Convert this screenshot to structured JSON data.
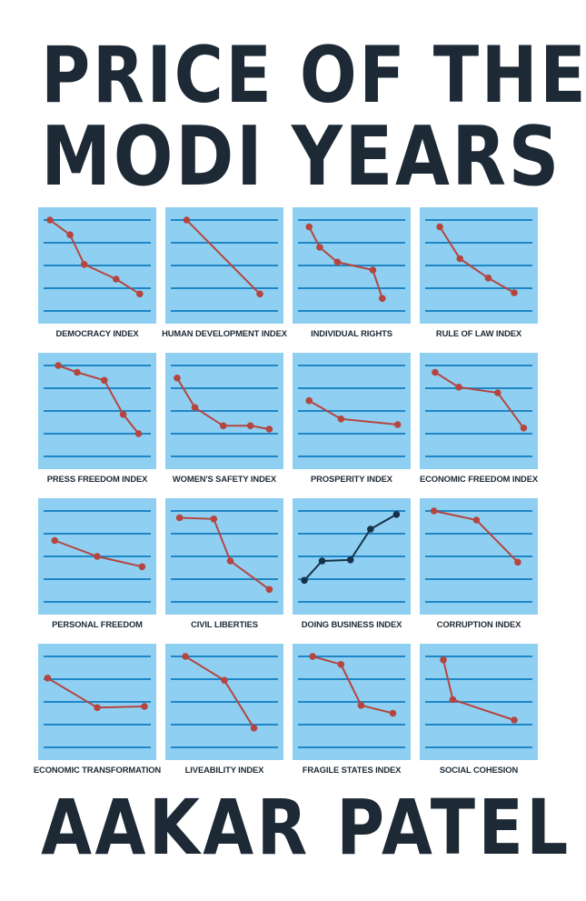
{
  "cover": {
    "title_line1": "PRICE OF THE",
    "title_line2": "MODI YEARS",
    "author": "AAKAR PATEL"
  },
  "colors": {
    "background": "#ffffff",
    "title": "#1d2a36",
    "panel": "#8fd0f2",
    "gridline": "#1f86c6",
    "declining_line": "#b5453f",
    "rising_line": "#16314a"
  },
  "chart_data": [
    {
      "type": "line",
      "label": "DEMOCRACY INDEX",
      "trend": "down",
      "ylim": [
        0,
        4
      ],
      "x": [
        0.1,
        0.27,
        0.39,
        0.66,
        0.86
      ],
      "y": [
        4.0,
        3.35,
        2.05,
        1.4,
        0.75
      ]
    },
    {
      "type": "line",
      "label": "HUMAN DEVELOPMENT INDEX",
      "trend": "down",
      "ylim": [
        0,
        4
      ],
      "x": [
        0.18,
        0.8
      ],
      "y": [
        4.0,
        0.75
      ]
    },
    {
      "type": "line",
      "label": "INDIVIDUAL RIGHTS",
      "trend": "down",
      "ylim": [
        0,
        4
      ],
      "x": [
        0.14,
        0.23,
        0.38,
        0.68,
        0.76
      ],
      "y": [
        3.7,
        2.8,
        2.15,
        1.8,
        0.55
      ]
    },
    {
      "type": "line",
      "label": "RULE OF LAW INDEX",
      "trend": "down",
      "ylim": [
        0,
        4
      ],
      "x": [
        0.17,
        0.34,
        0.58,
        0.8
      ],
      "y": [
        3.7,
        2.3,
        1.45,
        0.8
      ]
    },
    {
      "type": "line",
      "label": "PRESS FREEDOM INDEX",
      "trend": "down",
      "ylim": [
        0,
        4
      ],
      "x": [
        0.17,
        0.33,
        0.56,
        0.72,
        0.85
      ],
      "y": [
        4.0,
        3.7,
        3.35,
        1.85,
        1.0
      ]
    },
    {
      "type": "line",
      "label": "WOMEN'S SAFETY INDEX",
      "trend": "down",
      "ylim": [
        0,
        4
      ],
      "x": [
        0.1,
        0.25,
        0.49,
        0.72,
        0.88
      ],
      "y": [
        3.45,
        2.15,
        1.35,
        1.35,
        1.2
      ]
    },
    {
      "type": "line",
      "label": "PROSPERITY INDEX",
      "trend": "down",
      "ylim": [
        0,
        4
      ],
      "x": [
        0.14,
        0.41,
        0.89
      ],
      "y": [
        2.45,
        1.65,
        1.4
      ]
    },
    {
      "type": "line",
      "label": "ECONOMIC FREEDOM INDEX",
      "trend": "down",
      "ylim": [
        0,
        4
      ],
      "x": [
        0.13,
        0.33,
        0.66,
        0.88
      ],
      "y": [
        3.7,
        3.05,
        2.8,
        1.25
      ]
    },
    {
      "type": "line",
      "label": "PERSONAL FREEDOM",
      "trend": "down",
      "ylim": [
        0,
        4
      ],
      "x": [
        0.14,
        0.5,
        0.88
      ],
      "y": [
        2.7,
        2.0,
        1.55
      ]
    },
    {
      "type": "line",
      "label": "CIVIL LIBERTIES",
      "trend": "down",
      "ylim": [
        0,
        4
      ],
      "x": [
        0.12,
        0.41,
        0.55,
        0.88
      ],
      "y": [
        3.7,
        3.65,
        1.8,
        0.55
      ]
    },
    {
      "type": "line",
      "label": "DOING BUSINESS INDEX",
      "trend": "up",
      "ylim": [
        0,
        4
      ],
      "x": [
        0.1,
        0.25,
        0.49,
        0.66,
        0.88
      ],
      "y": [
        0.95,
        1.8,
        1.85,
        3.2,
        3.85
      ]
    },
    {
      "type": "line",
      "label": "CORRUPTION INDEX",
      "trend": "down",
      "ylim": [
        0,
        4
      ],
      "x": [
        0.12,
        0.48,
        0.83
      ],
      "y": [
        4.0,
        3.6,
        1.75
      ]
    },
    {
      "type": "line",
      "label": "ECONOMIC TRANSFORMATION",
      "trend": "down",
      "ylim": [
        0,
        4
      ],
      "x": [
        0.08,
        0.5,
        0.9
      ],
      "y": [
        3.05,
        1.75,
        1.8
      ]
    },
    {
      "type": "line",
      "label": "LIVEABILITY INDEX",
      "trend": "down",
      "ylim": [
        0,
        4
      ],
      "x": [
        0.17,
        0.5,
        0.75
      ],
      "y": [
        4.0,
        2.95,
        0.85
      ]
    },
    {
      "type": "line",
      "label": "FRAGILE STATES INDEX",
      "trend": "down",
      "ylim": [
        0,
        4
      ],
      "x": [
        0.17,
        0.41,
        0.58,
        0.85
      ],
      "y": [
        4.0,
        3.65,
        1.85,
        1.5
      ]
    },
    {
      "type": "line",
      "label": "SOCIAL COHESION",
      "trend": "down",
      "ylim": [
        0,
        4
      ],
      "x": [
        0.2,
        0.28,
        0.8
      ],
      "y": [
        3.85,
        2.1,
        1.2
      ]
    }
  ]
}
